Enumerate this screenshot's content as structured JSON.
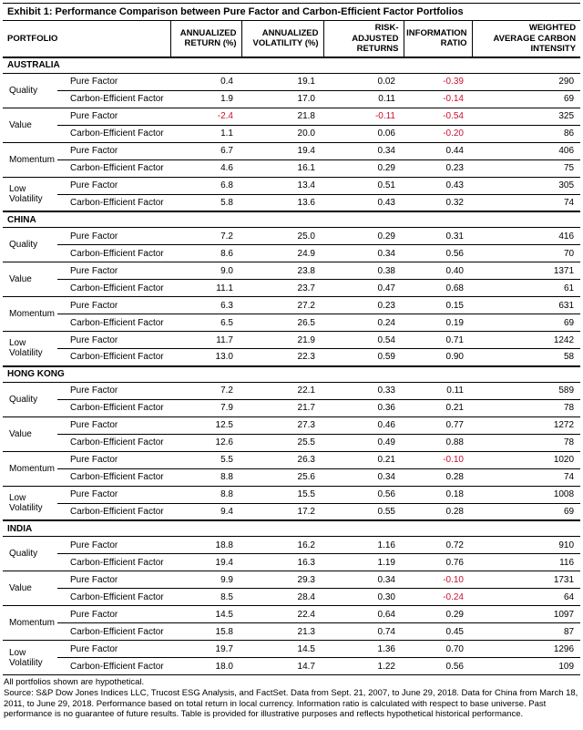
{
  "title": "Exhibit 1: Performance Comparison between Pure Factor and Carbon-Efficient Factor Portfolios",
  "columns": [
    "PORTFOLIO",
    "ANNUALIZED\nRETURN (%)",
    "ANNUALIZED\nVOLATILITY (%)",
    "RISK-\nADJUSTED\nRETURNS",
    "INFORMATION\nRATIO",
    "WEIGHTED\nAVERAGE CARBON\nINTENSITY"
  ],
  "colors": {
    "negative_value": "#C8102E",
    "text": "#000000",
    "border": "#000000",
    "background": "#FFFFFF"
  },
  "sections": [
    {
      "country": "AUSTRALIA",
      "groups": [
        {
          "factor": "Quality",
          "rows": [
            {
              "portfolio": "Pure Factor",
              "values": [
                "0.4",
                "19.1",
                "0.02",
                "-0.39",
                "290"
              ]
            },
            {
              "portfolio": "Carbon-Efficient Factor",
              "values": [
                "1.9",
                "17.0",
                "0.11",
                "-0.14",
                "69"
              ]
            }
          ]
        },
        {
          "factor": "Value",
          "rows": [
            {
              "portfolio": "Pure Factor",
              "values": [
                "-2.4",
                "21.8",
                "-0.11",
                "-0.54",
                "325"
              ]
            },
            {
              "portfolio": "Carbon-Efficient Factor",
              "values": [
                "1.1",
                "20.0",
                "0.06",
                "-0.20",
                "86"
              ]
            }
          ]
        },
        {
          "factor": "Momentum",
          "rows": [
            {
              "portfolio": "Pure Factor",
              "values": [
                "6.7",
                "19.4",
                "0.34",
                "0.44",
                "406"
              ]
            },
            {
              "portfolio": "Carbon-Efficient Factor",
              "values": [
                "4.6",
                "16.1",
                "0.29",
                "0.23",
                "75"
              ]
            }
          ]
        },
        {
          "factor": "Low Volatility",
          "rows": [
            {
              "portfolio": "Pure Factor",
              "values": [
                "6.8",
                "13.4",
                "0.51",
                "0.43",
                "305"
              ]
            },
            {
              "portfolio": "Carbon-Efficient Factor",
              "values": [
                "5.8",
                "13.6",
                "0.43",
                "0.32",
                "74"
              ]
            }
          ]
        }
      ]
    },
    {
      "country": "CHINA",
      "groups": [
        {
          "factor": "Quality",
          "rows": [
            {
              "portfolio": "Pure Factor",
              "values": [
                "7.2",
                "25.0",
                "0.29",
                "0.31",
                "416"
              ]
            },
            {
              "portfolio": "Carbon-Efficient Factor",
              "values": [
                "8.6",
                "24.9",
                "0.34",
                "0.56",
                "70"
              ]
            }
          ]
        },
        {
          "factor": "Value",
          "rows": [
            {
              "portfolio": "Pure Factor",
              "values": [
                "9.0",
                "23.8",
                "0.38",
                "0.40",
                "1371"
              ]
            },
            {
              "portfolio": "Carbon-Efficient Factor",
              "values": [
                "11.1",
                "23.7",
                "0.47",
                "0.68",
                "61"
              ]
            }
          ]
        },
        {
          "factor": "Momentum",
          "rows": [
            {
              "portfolio": "Pure Factor",
              "values": [
                "6.3",
                "27.2",
                "0.23",
                "0.15",
                "631"
              ]
            },
            {
              "portfolio": "Carbon-Efficient Factor",
              "values": [
                "6.5",
                "26.5",
                "0.24",
                "0.19",
                "69"
              ]
            }
          ]
        },
        {
          "factor": "Low Volatility",
          "rows": [
            {
              "portfolio": "Pure Factor",
              "values": [
                "11.7",
                "21.9",
                "0.54",
                "0.71",
                "1242"
              ]
            },
            {
              "portfolio": "Carbon-Efficient Factor",
              "values": [
                "13.0",
                "22.3",
                "0.59",
                "0.90",
                "58"
              ]
            }
          ]
        }
      ]
    },
    {
      "country": "HONG KONG",
      "groups": [
        {
          "factor": "Quality",
          "rows": [
            {
              "portfolio": "Pure Factor",
              "values": [
                "7.2",
                "22.1",
                "0.33",
                "0.11",
                "589"
              ]
            },
            {
              "portfolio": "Carbon-Efficient Factor",
              "values": [
                "7.9",
                "21.7",
                "0.36",
                "0.21",
                "78"
              ]
            }
          ]
        },
        {
          "factor": "Value",
          "rows": [
            {
              "portfolio": "Pure Factor",
              "values": [
                "12.5",
                "27.3",
                "0.46",
                "0.77",
                "1272"
              ]
            },
            {
              "portfolio": "Carbon-Efficient Factor",
              "values": [
                "12.6",
                "25.5",
                "0.49",
                "0.88",
                "78"
              ]
            }
          ]
        },
        {
          "factor": "Momentum",
          "rows": [
            {
              "portfolio": "Pure Factor",
              "values": [
                "5.5",
                "26.3",
                "0.21",
                "-0.10",
                "1020"
              ]
            },
            {
              "portfolio": "Carbon-Efficient Factor",
              "values": [
                "8.8",
                "25.6",
                "0.34",
                "0.28",
                "74"
              ]
            }
          ]
        },
        {
          "factor": "Low Volatility",
          "rows": [
            {
              "portfolio": "Pure Factor",
              "values": [
                "8.8",
                "15.5",
                "0.56",
                "0.18",
                "1008"
              ]
            },
            {
              "portfolio": "Carbon-Efficient Factor",
              "values": [
                "9.4",
                "17.2",
                "0.55",
                "0.28",
                "69"
              ]
            }
          ]
        }
      ]
    },
    {
      "country": "INDIA",
      "groups": [
        {
          "factor": "Quality",
          "rows": [
            {
              "portfolio": "Pure Factor",
              "values": [
                "18.8",
                "16.2",
                "1.16",
                "0.72",
                "910"
              ]
            },
            {
              "portfolio": "Carbon-Efficient Factor",
              "values": [
                "19.4",
                "16.3",
                "1.19",
                "0.76",
                "116"
              ]
            }
          ]
        },
        {
          "factor": "Value",
          "rows": [
            {
              "portfolio": "Pure Factor",
              "values": [
                "9.9",
                "29.3",
                "0.34",
                "-0.10",
                "1731"
              ]
            },
            {
              "portfolio": "Carbon-Efficient Factor",
              "values": [
                "8.5",
                "28.4",
                "0.30",
                "-0.24",
                "64"
              ]
            }
          ]
        },
        {
          "factor": "Momentum",
          "rows": [
            {
              "portfolio": "Pure Factor",
              "values": [
                "14.5",
                "22.4",
                "0.64",
                "0.29",
                "1097"
              ]
            },
            {
              "portfolio": "Carbon-Efficient Factor",
              "values": [
                "15.8",
                "21.3",
                "0.74",
                "0.45",
                "87"
              ]
            }
          ]
        },
        {
          "factor": "Low Volatility",
          "rows": [
            {
              "portfolio": "Pure Factor",
              "values": [
                "19.7",
                "14.5",
                "1.36",
                "0.70",
                "1296"
              ]
            },
            {
              "portfolio": "Carbon-Efficient Factor",
              "values": [
                "18.0",
                "14.7",
                "1.22",
                "0.56",
                "109"
              ]
            }
          ]
        }
      ]
    }
  ],
  "footnotes": [
    "All portfolios shown are hypothetical.",
    "Source: S&P Dow Jones Indices LLC, Trucost ESG Analysis, and FactSet. Data from Sept. 21, 2007, to June 29, 2018. Data for China from March 18, 2011, to June 29, 2018. Performance based on total return in local currency. Information ratio is calculated with respect to base universe. Past performance is no guarantee of future results. Table is provided for illustrative purposes and reflects hypothetical historical performance."
  ]
}
